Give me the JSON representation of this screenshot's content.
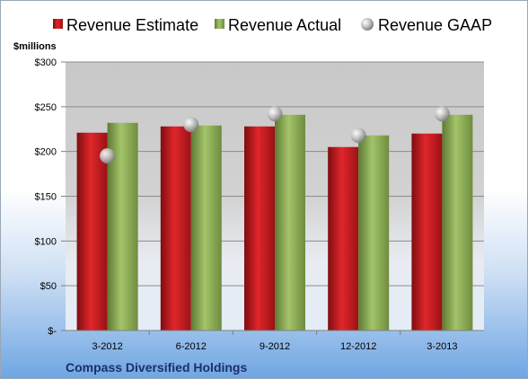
{
  "chart_data": {
    "type": "bar",
    "unit_label": "$millions",
    "categories": [
      "3-2012",
      "6-2012",
      "9-2012",
      "12-2012",
      "3-2013"
    ],
    "series": [
      {
        "name": "Revenue Estimate",
        "kind": "bar",
        "color": "#c0181c",
        "values": [
          221,
          228,
          228,
          205,
          220
        ]
      },
      {
        "name": "Revenue Actual",
        "kind": "bar",
        "color": "#8aac4e",
        "values": [
          232,
          229,
          241,
          218,
          241
        ]
      },
      {
        "name": "Revenue GAAP",
        "kind": "marker",
        "color": "#b8b8b8",
        "values": [
          195,
          230,
          242,
          218,
          242
        ]
      }
    ],
    "ylim": [
      0,
      300
    ],
    "y_ticks": [
      0,
      50,
      100,
      150,
      200,
      250,
      300
    ],
    "y_tick_labels": [
      "$-",
      "$50",
      "$100",
      "$150",
      "$200",
      "$250",
      "$300"
    ],
    "grid": true,
    "legend_position": "top",
    "footer": "Compass Diversified Holdings"
  }
}
